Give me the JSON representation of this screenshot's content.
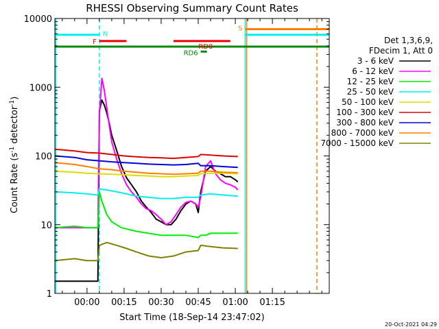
{
  "chart_data": {
    "type": "line",
    "title": "RHESSI Observing Summary Count Rates",
    "xlabel": "Start Time (18-Sep-14 23:47:02)",
    "ylabel_main": "Count Rate (s",
    "ylabel_sup": "-1",
    "ylabel_mid": " detector",
    "ylabel_sup2": "-1",
    "ylabel_end": ")",
    "yscale": "log",
    "ylim": [
      1,
      10000
    ],
    "xlim_minutes": [
      -13,
      98
    ],
    "x_ticks": [
      {
        "m": 0,
        "label": "00:00"
      },
      {
        "m": 15,
        "label": "00:15"
      },
      {
        "m": 30,
        "label": "00:30"
      },
      {
        "m": 45,
        "label": "00:45"
      },
      {
        "m": 60,
        "label": "01:00"
      },
      {
        "m": 75,
        "label": "01:15"
      }
    ],
    "y_ticks": [
      {
        "v": 1,
        "label": "1"
      },
      {
        "v": 10,
        "label": "10"
      },
      {
        "v": 100,
        "label": "100"
      },
      {
        "v": 1000,
        "label": "1000"
      },
      {
        "v": 10000,
        "label": "10000"
      }
    ],
    "legend_header": [
      "Det 1,3,6,9,",
      "FDecim 1, Att 0"
    ],
    "footer_date": "20-Oct-2021 04:29",
    "series": [
      {
        "name": "3 - 6 keV",
        "color": "#000000",
        "x": [
          -13,
          -5,
          0,
          4.4,
          5,
          6,
          7,
          8,
          9,
          10,
          12,
          14,
          16,
          18,
          20,
          22,
          24,
          26,
          28,
          30,
          32,
          34,
          36,
          38,
          40,
          42,
          44,
          45,
          46,
          48,
          50,
          52,
          54,
          56,
          58,
          60,
          61
        ],
        "y": [
          1.5,
          1.5,
          1.5,
          1.5,
          450,
          650,
          550,
          420,
          300,
          200,
          120,
          70,
          48,
          38,
          30,
          22,
          18,
          15,
          12,
          11,
          10,
          10,
          12,
          16,
          20,
          22,
          20,
          15,
          30,
          60,
          70,
          60,
          55,
          50,
          50,
          45,
          42
        ]
      },
      {
        "name": "6 - 12 keV",
        "color": "#ff00ff",
        "x": [
          -13,
          -5,
          0,
          4.4,
          5,
          6,
          7,
          8,
          9,
          10,
          12,
          14,
          16,
          18,
          20,
          22,
          24,
          26,
          28,
          30,
          32,
          34,
          36,
          38,
          40,
          42,
          44,
          45,
          46,
          48,
          50,
          52,
          54,
          56,
          58,
          60,
          61
        ],
        "y": [
          9,
          9,
          9,
          9,
          400,
          1350,
          900,
          500,
          280,
          160,
          90,
          55,
          38,
          30,
          25,
          20,
          17,
          16,
          14,
          12,
          10,
          11,
          14,
          18,
          21,
          22,
          20,
          18,
          25,
          70,
          85,
          55,
          45,
          40,
          38,
          35,
          32
        ]
      },
      {
        "name": "12 - 25 keV",
        "color": "#00ee00",
        "x": [
          -13,
          -5,
          0,
          4.4,
          5,
          6,
          8,
          10,
          14,
          20,
          30,
          40,
          45,
          46,
          48,
          50,
          55,
          61
        ],
        "y": [
          9,
          9.5,
          9,
          9,
          30,
          22,
          14,
          11,
          9,
          8,
          7,
          7,
          6.5,
          7,
          7,
          7.5,
          7.5,
          7.5
        ]
      },
      {
        "name": "25 - 50 keV",
        "color": "#00eeee",
        "x": [
          -13,
          -5,
          0,
          4.4,
          5,
          8,
          12,
          16,
          20,
          25,
          30,
          35,
          40,
          45,
          46,
          50,
          55,
          61
        ],
        "y": [
          30,
          29,
          28,
          27,
          33,
          32,
          30,
          28,
          26,
          25,
          24,
          24,
          25,
          25,
          27,
          28,
          27,
          26
        ]
      },
      {
        "name": "50 - 100 keV",
        "color": "#dddd00",
        "x": [
          -13,
          -5,
          0,
          5,
          10,
          15,
          20,
          25,
          30,
          35,
          40,
          45,
          46,
          50,
          55,
          61
        ],
        "y": [
          60,
          58,
          56,
          55,
          54,
          53,
          52,
          51,
          50,
          50,
          51,
          52,
          55,
          56,
          56,
          55
        ]
      },
      {
        "name": "100 - 300 keV",
        "color": "#dd0000",
        "x": [
          -13,
          -5,
          0,
          5,
          10,
          15,
          20,
          25,
          30,
          35,
          40,
          45,
          46,
          50,
          55,
          61
        ],
        "y": [
          125,
          118,
          112,
          110,
          105,
          100,
          97,
          95,
          94,
          92,
          95,
          98,
          105,
          103,
          100,
          98
        ]
      },
      {
        "name": "300 - 800 keV",
        "color": "#0000dd",
        "x": [
          -13,
          -5,
          0,
          5,
          10,
          15,
          20,
          25,
          30,
          35,
          40,
          45,
          46,
          50,
          55,
          61
        ],
        "y": [
          100,
          95,
          88,
          85,
          82,
          80,
          78,
          76,
          75,
          74,
          75,
          78,
          72,
          72,
          70,
          68
        ]
      },
      {
        "name": "800 - 7000 keV",
        "color": "#ff7f00",
        "x": [
          -13,
          -5,
          0,
          5,
          10,
          15,
          20,
          25,
          30,
          35,
          40,
          45,
          46,
          50,
          55,
          61
        ],
        "y": [
          80,
          75,
          70,
          65,
          63,
          60,
          58,
          56,
          55,
          54,
          55,
          56,
          60,
          60,
          58,
          57
        ]
      },
      {
        "name": "7000 - 15000 keV",
        "color": "#808000",
        "x": [
          -13,
          -5,
          0,
          4.4,
          5,
          8,
          12,
          16,
          20,
          25,
          30,
          35,
          40,
          45,
          46,
          50,
          55,
          61
        ],
        "y": [
          3,
          3.2,
          3,
          3,
          5,
          5.5,
          5,
          4.5,
          4,
          3.5,
          3.3,
          3.5,
          4,
          4.2,
          5,
          4.8,
          4.6,
          4.5
        ]
      }
    ],
    "flags": [
      {
        "label": "N",
        "color": "#00eeee",
        "x0": -13,
        "x1": 5,
        "level_y": 5800
      },
      {
        "label": "F",
        "color": "#ee0000",
        "x0": 5,
        "x1": 16,
        "level_y": 4700
      },
      {
        "label": "RD0",
        "color": "#ee0000",
        "x0": 35,
        "x1": 58,
        "level_y": 4700
      },
      {
        "label": "S",
        "color": "#ff7f00",
        "x0": 64,
        "x1": 98,
        "level_y": 7000
      },
      {
        "label": "",
        "color": "#00eeee",
        "x0": 64,
        "x1": 98,
        "level_y": 5800
      },
      {
        "label": "",
        "color": "#008800",
        "x0": -13,
        "x1": 98,
        "level_y": 3900
      },
      {
        "label": "RD6",
        "color": "#008800",
        "x0": 46,
        "x1": 48.5,
        "level_y": 3300
      }
    ],
    "vlines": [
      {
        "x": 5,
        "color": "#00eeee",
        "style": "dashed"
      },
      {
        "x": 64,
        "color": "#00eeee",
        "style": "solid"
      },
      {
        "x": 64.6,
        "color": "#ff7f00",
        "style": "solid"
      },
      {
        "x": 93,
        "color": "#ff7f00",
        "style": "dashed"
      },
      {
        "x": -12.6,
        "color": "#00eeee",
        "style": "solid"
      }
    ]
  }
}
